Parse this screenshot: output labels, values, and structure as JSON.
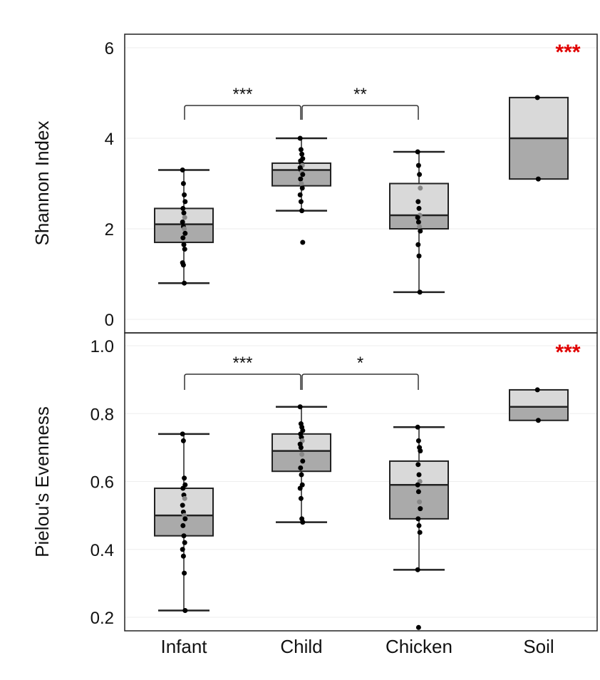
{
  "chart_data": [
    {
      "type": "box",
      "ylabel": "Shannon Index",
      "categories": [
        "Infant",
        "Child",
        "Chicken",
        "Soil"
      ],
      "ylim": [
        0,
        6
      ],
      "yticks": [
        0,
        2,
        4,
        6
      ],
      "ytick_labels": [
        "0",
        "2",
        "4",
        "6"
      ],
      "grid": "horizontal",
      "boxes": [
        {
          "category": "Infant",
          "whisker_low": 0.8,
          "q1": 1.7,
          "median": 2.1,
          "q3": 2.45,
          "whisker_high": 3.3
        },
        {
          "category": "Child",
          "whisker_low": 2.4,
          "q1": 2.95,
          "median": 3.3,
          "q3": 3.45,
          "whisker_high": 4.0
        },
        {
          "category": "Chicken",
          "whisker_low": 0.6,
          "q1": 2.0,
          "median": 2.3,
          "q3": 3.0,
          "whisker_high": 3.7
        },
        {
          "category": "Soil",
          "whisker_low": 3.1,
          "q1": 3.1,
          "median": 4.0,
          "q3": 4.9,
          "whisker_high": 4.9
        }
      ],
      "points": {
        "Infant": [
          3.3,
          3.0,
          2.75,
          2.6,
          2.45,
          2.35,
          2.25,
          2.15,
          2.05,
          2.0,
          1.9,
          1.8,
          1.65,
          1.55,
          1.25,
          1.2,
          0.8
        ],
        "Child": [
          4.0,
          3.75,
          3.65,
          3.55,
          3.5,
          3.45,
          3.4,
          3.35,
          3.3,
          3.25,
          3.2,
          3.1,
          3.0,
          2.9,
          2.75,
          2.6,
          2.4,
          1.7
        ],
        "Chicken": [
          3.7,
          3.4,
          3.2,
          2.9,
          2.6,
          2.45,
          2.3,
          2.25,
          2.15,
          2.05,
          1.95,
          1.65,
          1.4,
          0.6
        ],
        "Soil": [
          4.9,
          3.1
        ]
      },
      "brackets": [
        {
          "from": "Infant",
          "to": "Child",
          "label": "***"
        },
        {
          "from": "Child",
          "to": "Chicken",
          "label": "**"
        }
      ],
      "corner_annotation": {
        "label": "***",
        "color": "#e00000"
      }
    },
    {
      "type": "box",
      "ylabel": "Pielou's Evenness",
      "xlabel": "",
      "categories": [
        "Infant",
        "Child",
        "Chicken",
        "Soil"
      ],
      "ylim": [
        0.18,
        1.0
      ],
      "yticks": [
        0.2,
        0.4,
        0.6,
        0.8,
        1.0
      ],
      "ytick_labels": [
        "0.2",
        "0.4",
        "0.6",
        "0.8",
        "1.0"
      ],
      "grid": "horizontal",
      "boxes": [
        {
          "category": "Infant",
          "whisker_low": 0.22,
          "q1": 0.44,
          "median": 0.5,
          "q3": 0.58,
          "whisker_high": 0.74
        },
        {
          "category": "Child",
          "whisker_low": 0.48,
          "q1": 0.63,
          "median": 0.69,
          "q3": 0.74,
          "whisker_high": 0.82
        },
        {
          "category": "Chicken",
          "whisker_low": 0.34,
          "q1": 0.49,
          "median": 0.59,
          "q3": 0.66,
          "whisker_high": 0.76
        },
        {
          "category": "Soil",
          "whisker_low": 0.78,
          "q1": 0.78,
          "median": 0.82,
          "q3": 0.87,
          "whisker_high": 0.87
        }
      ],
      "points": {
        "Infant": [
          0.74,
          0.72,
          0.61,
          0.59,
          0.58,
          0.56,
          0.55,
          0.53,
          0.51,
          0.5,
          0.49,
          0.47,
          0.44,
          0.42,
          0.4,
          0.38,
          0.33,
          0.22
        ],
        "Child": [
          0.82,
          0.77,
          0.76,
          0.75,
          0.74,
          0.73,
          0.72,
          0.71,
          0.7,
          0.68,
          0.66,
          0.64,
          0.62,
          0.59,
          0.58,
          0.55,
          0.49,
          0.48
        ],
        "Chicken": [
          0.76,
          0.72,
          0.7,
          0.69,
          0.65,
          0.62,
          0.6,
          0.59,
          0.57,
          0.54,
          0.52,
          0.49,
          0.47,
          0.45,
          0.34,
          0.17
        ],
        "Soil": [
          0.87,
          0.78
        ]
      },
      "brackets": [
        {
          "from": "Infant",
          "to": "Child",
          "label": "***"
        },
        {
          "from": "Child",
          "to": "Chicken",
          "label": "*"
        }
      ],
      "corner_annotation": {
        "label": "***",
        "color": "#e00000"
      }
    }
  ],
  "colors": {
    "upper_box": "#d9d9d9",
    "lower_box": "#aaaaaa",
    "box_outline": "#222222",
    "point_dark": "#000000",
    "point_light": "#888888",
    "grid": "#eeeeee",
    "significance_red": "#e00000"
  }
}
